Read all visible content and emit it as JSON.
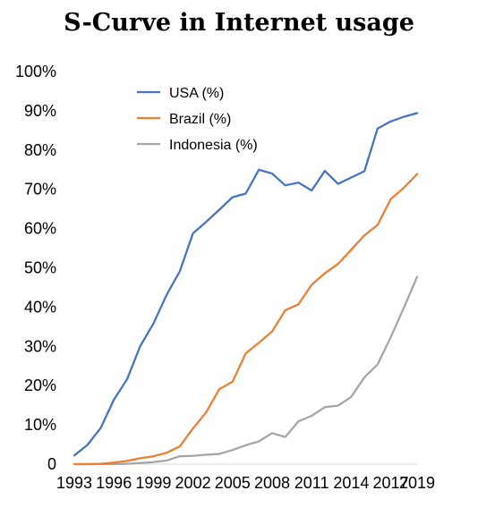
{
  "chart_data": {
    "type": "line",
    "title": "S-Curve in Internet usage",
    "xlabel": "",
    "ylabel": "",
    "x": [
      1993,
      1994,
      1995,
      1996,
      1997,
      1998,
      1999,
      2000,
      2001,
      2002,
      2003,
      2004,
      2005,
      2006,
      2007,
      2008,
      2009,
      2010,
      2011,
      2012,
      2013,
      2014,
      2015,
      2016,
      2017,
      2018,
      2019
    ],
    "xlim": [
      1993,
      2019
    ],
    "xticks": [
      1993,
      1996,
      1999,
      2002,
      2005,
      2008,
      2011,
      2014,
      2017,
      2019
    ],
    "ylim": [
      0,
      100
    ],
    "yticks": [
      {
        "value": 0,
        "label": "0"
      },
      {
        "value": 10,
        "label": "10%"
      },
      {
        "value": 20,
        "label": "20%"
      },
      {
        "value": 30,
        "label": "30%"
      },
      {
        "value": 40,
        "label": "40%"
      },
      {
        "value": 50,
        "label": "50%"
      },
      {
        "value": 60,
        "label": "60%"
      },
      {
        "value": 70,
        "label": "70%"
      },
      {
        "value": 80,
        "label": "80%"
      },
      {
        "value": 90,
        "label": "90%"
      },
      {
        "value": 100,
        "label": "100%"
      }
    ],
    "grid": false,
    "legend_position": "top-left",
    "series": [
      {
        "name": "USA (%)",
        "color": "#4472C4",
        "values": [
          2.2,
          4.9,
          9.2,
          16.4,
          21.6,
          30.1,
          35.8,
          43.1,
          49.1,
          58.8,
          61.7,
          64.8,
          68.0,
          68.9,
          75.0,
          74.0,
          71.0,
          71.7,
          69.7,
          74.7,
          71.4,
          73.0,
          74.6,
          85.5,
          87.3,
          88.5,
          89.4
        ]
      },
      {
        "name": "Brazil (%)",
        "color": "#ED7D31",
        "values": [
          0.0,
          0.0,
          0.1,
          0.4,
          0.8,
          1.5,
          2.0,
          2.9,
          4.5,
          9.1,
          13.2,
          19.1,
          21.0,
          28.2,
          30.9,
          33.8,
          39.2,
          40.7,
          45.7,
          48.6,
          51.0,
          54.6,
          58.3,
          60.9,
          67.5,
          70.4,
          73.9
        ]
      },
      {
        "name": "Indonesia (%)",
        "color": "#A5A5A5",
        "values": [
          0.0,
          0.0,
          0.0,
          0.0,
          0.1,
          0.3,
          0.5,
          0.9,
          2.0,
          2.1,
          2.4,
          2.6,
          3.6,
          4.8,
          5.8,
          7.9,
          6.9,
          10.9,
          12.3,
          14.5,
          14.9,
          17.1,
          22.1,
          25.4,
          32.3,
          39.9,
          47.7
        ]
      }
    ]
  }
}
